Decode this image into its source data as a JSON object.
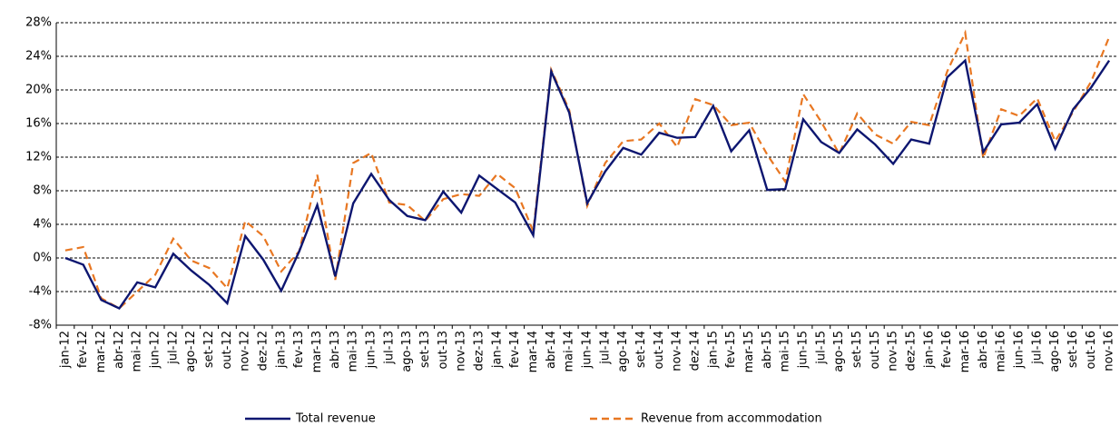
{
  "chart_data": {
    "type": "line",
    "categories": [
      "jan-12",
      "fev-12",
      "mar-12",
      "abr-12",
      "mai-12",
      "jun-12",
      "jul-12",
      "ago-12",
      "set-12",
      "out-12",
      "nov-12",
      "dez-12",
      "jan-13",
      "fev-13",
      "mar-13",
      "abr-13",
      "mai-13",
      "jun-13",
      "jul-13",
      "ago-13",
      "set-13",
      "out-13",
      "nov-13",
      "dez-13",
      "jan-14",
      "fev-14",
      "mar-14",
      "abr-14",
      "mai-14",
      "jun-14",
      "jul-14",
      "ago-14",
      "set-14",
      "out-14",
      "nov-14",
      "dez-14",
      "jan-15",
      "fev-15",
      "mar-15",
      "abr-15",
      "mai-15",
      "jun-15",
      "jul-15",
      "ago-15",
      "set-15",
      "out-15",
      "nov-15",
      "dez-15",
      "jan-16",
      "fev-16",
      "mar-16",
      "abr-16",
      "mai-16",
      "jun-16",
      "jul-16",
      "ago-16",
      "set-16",
      "out-16",
      "nov-16"
    ],
    "series": [
      {
        "name": "Total revenue",
        "color": "#0d1670",
        "dash": false,
        "values": [
          0,
          -0.8,
          -5,
          -6,
          -2.9,
          -3.5,
          0.5,
          -1.5,
          -3.2,
          -5.4,
          2.6,
          -0.2,
          -3.9,
          0.8,
          6.3,
          -2.2,
          6.5,
          10,
          6.9,
          5,
          4.5,
          7.9,
          5.4,
          9.8,
          8.2,
          6.6,
          2.7,
          22.2,
          17.3,
          6.5,
          10.3,
          13.1,
          12.3,
          14.9,
          14.3,
          14.4,
          18.1,
          12.7,
          15.2,
          8.1,
          8.2,
          16.5,
          13.8,
          12.5,
          15.3,
          13.5,
          11.2,
          14.1,
          13.6,
          21.5,
          23.5,
          12.6,
          15.9,
          16.1,
          18.3,
          13,
          17.7,
          20.3,
          23.5
        ]
      },
      {
        "name": "Revenue from accommodation",
        "color": "#e87722",
        "dash": true,
        "values": [
          0.9,
          1.3,
          -4.8,
          -6,
          -4,
          -2,
          2.3,
          -0.3,
          -1.2,
          -3.6,
          4.4,
          2.6,
          -1.6,
          0.8,
          9.9,
          -2.6,
          11.3,
          12.5,
          6.6,
          6.3,
          4.4,
          7,
          7.6,
          7.4,
          10,
          8.3,
          3.2,
          22.4,
          17.6,
          6.2,
          11.3,
          13.9,
          14.1,
          16,
          13.2,
          18.9,
          18.2,
          15.8,
          16.1,
          12.3,
          9.1,
          19.5,
          16.2,
          12.4,
          17.2,
          14.7,
          13.6,
          16.2,
          15.8,
          22.2,
          26.8,
          11.9,
          17.7,
          16.9,
          19,
          13.9,
          17.4,
          21,
          26.3
        ]
      }
    ],
    "ylim": [
      -8,
      28
    ],
    "yticks": [
      {
        "value": -8,
        "label": "-8%"
      },
      {
        "value": -4,
        "label": "-4%"
      },
      {
        "value": 0,
        "label": "0%"
      },
      {
        "value": 4,
        "label": "4%"
      },
      {
        "value": 8,
        "label": "8%"
      },
      {
        "value": 12,
        "label": "12%"
      },
      {
        "value": 16,
        "label": "16%"
      },
      {
        "value": 20,
        "label": "20%"
      },
      {
        "value": 24,
        "label": "24%"
      },
      {
        "value": 28,
        "label": "28%"
      }
    ],
    "grid": true,
    "legend": "bottom"
  }
}
